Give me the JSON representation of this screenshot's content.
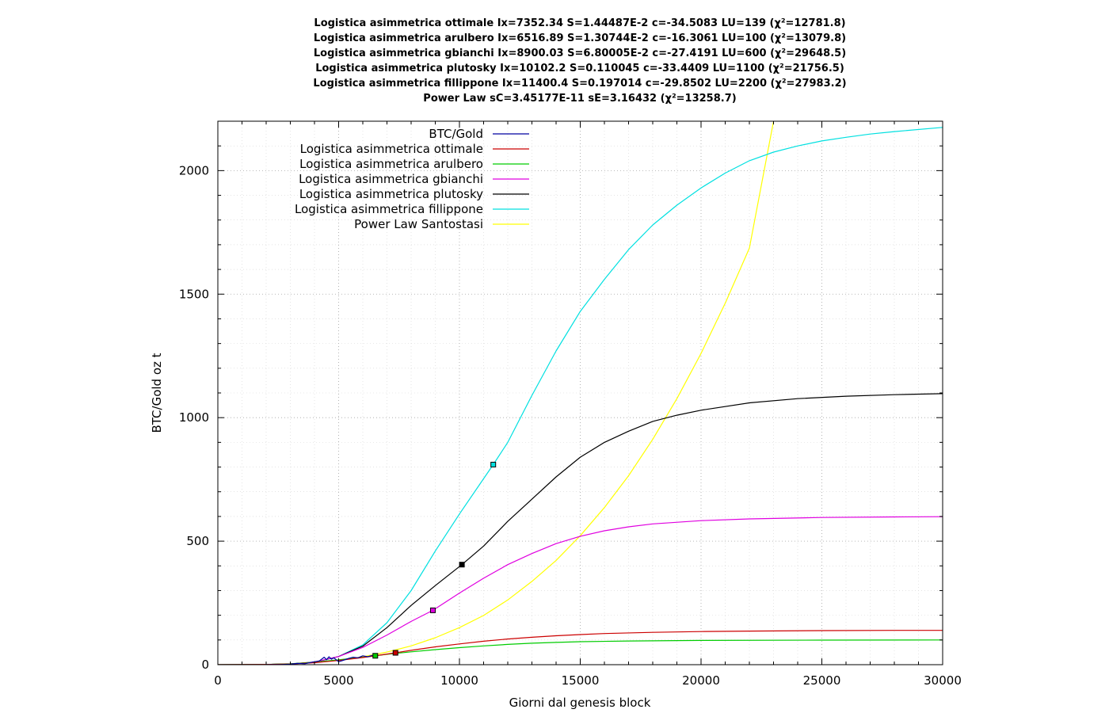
{
  "titles": [
    "Logistica asimmetrica ottimale Ix=7352.34 S=1.44487E-2 c=-34.5083 LU=139 (χ²=12781.8)",
    "Logistica asimmetrica arulbero Ix=6516.89 S=1.30744E-2 c=-16.3061 LU=100 (χ²=13079.8)",
    "Logistica asimmetrica gbianchi Ix=8900.03 S=6.80005E-2 c=-27.4191 LU=600 (χ²=29648.5)",
    "Logistica asimmetrica plutosky Ix=10102.2 S=0.110045 c=-33.4409 LU=1100 (χ²=21756.5)",
    "Logistica asimmetrica fillippone Ix=11400.4 S=0.197014 c=-29.8502 LU=2200 (χ²=27983.2)",
    "Power Law sC=3.45177E-11 sE=3.16432 (χ²=13258.7)"
  ],
  "chart_data": {
    "type": "line",
    "xlabel": "Giorni dal genesis block",
    "ylabel": "BTC/Gold oz t",
    "xlim": [
      0,
      30000
    ],
    "ylim": [
      0,
      2200
    ],
    "x_ticks": [
      0,
      5000,
      10000,
      15000,
      20000,
      25000,
      30000
    ],
    "y_ticks": [
      0,
      500,
      1000,
      1500,
      2000
    ],
    "grid": true,
    "legend_position": "top-left",
    "series": [
      {
        "name": "BTC/Gold",
        "color": "#0000a0",
        "x": [
          2000,
          2600,
          3000,
          3300,
          3600,
          3900,
          4200,
          4400,
          4500,
          4600,
          4700,
          4800,
          4900,
          5000,
          5200,
          5400,
          5600,
          5800,
          6000,
          6200,
          6400
        ],
        "y": [
          0,
          0.5,
          2,
          5,
          4,
          10,
          15,
          30,
          20,
          32,
          22,
          28,
          20,
          12,
          18,
          25,
          30,
          28,
          36,
          32,
          38
        ]
      },
      {
        "name": "Logistica asimmetrica ottimale",
        "color": "#cc0000",
        "x": [
          0,
          2000,
          3000,
          4000,
          5000,
          6000,
          7000,
          7352,
          8000,
          9000,
          10000,
          11000,
          12000,
          13000,
          14000,
          15000,
          16000,
          18000,
          20000,
          22000,
          25000,
          28000,
          30000
        ],
        "y": [
          0,
          1,
          3,
          8,
          17,
          29,
          43,
          48,
          58,
          72,
          84,
          95,
          104,
          111,
          117,
          122,
          126,
          131,
          134,
          136,
          138,
          139,
          139
        ]
      },
      {
        "name": "Logistica asimmetrica arulbero",
        "color": "#00cc00",
        "x": [
          0,
          2000,
          3000,
          4000,
          5000,
          6000,
          6517,
          7000,
          8000,
          9000,
          10000,
          11000,
          12000,
          13000,
          14000,
          15000,
          17000,
          20000,
          25000,
          30000
        ],
        "y": [
          0,
          1,
          4,
          10,
          20,
          30,
          36,
          42,
          52,
          61,
          69,
          76,
          82,
          87,
          90,
          93,
          96,
          98,
          99.5,
          100
        ]
      },
      {
        "name": "Logistica asimmetrica gbianchi",
        "color": "#e000e0",
        "x": [
          0,
          2000,
          3000,
          4000,
          5000,
          6000,
          7000,
          8000,
          8900,
          10000,
          11000,
          12000,
          13000,
          14000,
          15000,
          16000,
          17000,
          18000,
          20000,
          22000,
          25000,
          28000,
          30000
        ],
        "y": [
          0,
          1,
          3,
          11,
          33,
          70,
          120,
          175,
          220,
          290,
          350,
          405,
          450,
          490,
          520,
          542,
          558,
          570,
          583,
          590,
          596,
          598,
          599
        ]
      },
      {
        "name": "Logistica asimmetrica plutosky",
        "color": "#000000",
        "x": [
          0,
          2000,
          3000,
          4000,
          5000,
          6000,
          7000,
          8000,
          9000,
          10102,
          11000,
          12000,
          13000,
          14000,
          15000,
          16000,
          17000,
          18000,
          19000,
          20000,
          22000,
          24000,
          26000,
          28000,
          30000
        ],
        "y": [
          0,
          1,
          3,
          10,
          33,
          75,
          150,
          240,
          320,
          405,
          480,
          580,
          670,
          760,
          840,
          900,
          945,
          985,
          1010,
          1030,
          1060,
          1077,
          1087,
          1093,
          1097
        ]
      },
      {
        "name": "Logistica asimmetrica fillippone",
        "color": "#00e0e0",
        "x": [
          0,
          2000,
          3000,
          4000,
          5000,
          6000,
          7000,
          8000,
          9000,
          10000,
          11400,
          12000,
          13000,
          14000,
          15000,
          16000,
          17000,
          18000,
          19000,
          20000,
          21000,
          22000,
          23000,
          24000,
          25000,
          26000,
          27000,
          28000,
          30000
        ],
        "y": [
          0,
          1,
          3,
          10,
          33,
          80,
          170,
          300,
          460,
          610,
          810,
          900,
          1090,
          1270,
          1430,
          1560,
          1680,
          1780,
          1860,
          1930,
          1990,
          2040,
          2075,
          2100,
          2120,
          2135,
          2148,
          2158,
          2175
        ]
      },
      {
        "name": "Power Law Santostasi",
        "color": "#ffff00",
        "x": [
          0,
          2000,
          3000,
          4000,
          5000,
          6000,
          7000,
          8000,
          9000,
          10000,
          11000,
          12000,
          13000,
          14000,
          15000,
          16000,
          17000,
          18000,
          19000,
          20000,
          21000,
          22000,
          23000
        ],
        "y": [
          0,
          1,
          3,
          9,
          18,
          32,
          51,
          76,
          109,
          150,
          199,
          262,
          337,
          422,
          522,
          636,
          765,
          912,
          1077,
          1260,
          1463,
          1686,
          2200
        ]
      }
    ],
    "markers": [
      {
        "series": "Logistica asimmetrica ottimale",
        "x": 7352,
        "y": 48
      },
      {
        "series": "Logistica asimmetrica arulbero",
        "x": 6517,
        "y": 36
      },
      {
        "series": "Logistica asimmetrica gbianchi",
        "x": 8900,
        "y": 220
      },
      {
        "series": "Logistica asimmetrica plutosky",
        "x": 10102,
        "y": 405
      },
      {
        "series": "Logistica asimmetrica fillippone",
        "x": 11400,
        "y": 810
      }
    ]
  }
}
